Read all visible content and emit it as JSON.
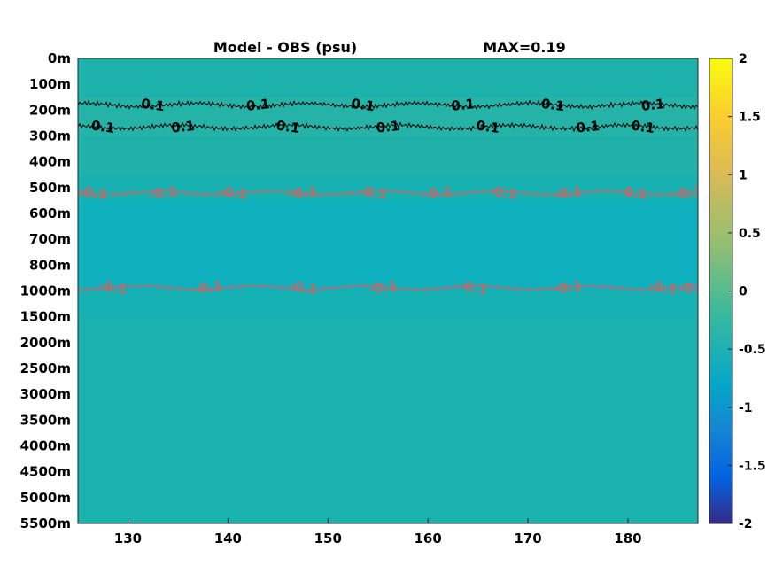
{
  "chart_data": {
    "type": "heatmap",
    "title": "Model - OBS (psu)",
    "annotation": "MAX=0.19",
    "xlim": [
      125,
      187
    ],
    "x_ticks": [
      130,
      140,
      150,
      160,
      170,
      180
    ],
    "x_tick_labels": [
      "130",
      "140",
      "150",
      "160",
      "170",
      "180"
    ],
    "y_ticks": [
      "0m",
      "100m",
      "200m",
      "300m",
      "400m",
      "500m",
      "600m",
      "700m",
      "800m",
      "1000m",
      "1500m",
      "2000m",
      "2500m",
      "3000m",
      "3500m",
      "4000m",
      "4500m",
      "5000m",
      "5500m"
    ],
    "y_scale": "piecewise (0-1000m stretched, 1000-5500m compressed)",
    "colorbar": {
      "colormap": "parula",
      "range": [
        -2,
        2
      ],
      "ticks": [
        "2",
        "1.5",
        "1",
        "0.5",
        "0",
        "-0.5",
        "-1",
        "-1.5",
        "-2"
      ]
    },
    "field_bands": [
      {
        "depth_from": 0,
        "depth_to": 150,
        "value": 0.02
      },
      {
        "depth_from": 150,
        "depth_to": 300,
        "value": 0.08
      },
      {
        "depth_from": 300,
        "depth_to": 450,
        "value": 0.04
      },
      {
        "depth_from": 450,
        "depth_to": 550,
        "value": -0.02
      },
      {
        "depth_from": 550,
        "depth_to": 1000,
        "value": -0.1
      },
      {
        "depth_from": 1000,
        "depth_to": 1500,
        "value": -0.03
      },
      {
        "depth_from": 1500,
        "depth_to": 5500,
        "value": 0.0
      }
    ],
    "contours": [
      {
        "level": 0.1,
        "color": "#000000",
        "depth": 180,
        "label_positions_x": [
          132.5,
          143,
          153.5,
          163.5,
          172.5,
          182.5
        ],
        "label": "0.1"
      },
      {
        "level": 0.1,
        "color": "#000000",
        "depth": 265,
        "label_positions_x": [
          127.5,
          135.5,
          146,
          156,
          166,
          176,
          181.5
        ],
        "label": "0.1"
      },
      {
        "level": -0.1,
        "color": "#b86c6c",
        "depth": 520,
        "label_positions_x": [
          126.5,
          133.5,
          140.5,
          147.5,
          154.5,
          161,
          167.5,
          174,
          180.5,
          186
        ],
        "label": "-0.1"
      },
      {
        "level": -0.1,
        "color": "#b86c6c",
        "depth": 975,
        "label_positions_x": [
          128.5,
          138,
          147.5,
          155.5,
          164.5,
          174,
          183.5,
          186.5
        ],
        "label": "-0.1"
      }
    ]
  },
  "colors": {
    "teal_field": "#1ab1ae",
    "mid_contour": "#000000",
    "neg_contour": "#b86c6c"
  }
}
